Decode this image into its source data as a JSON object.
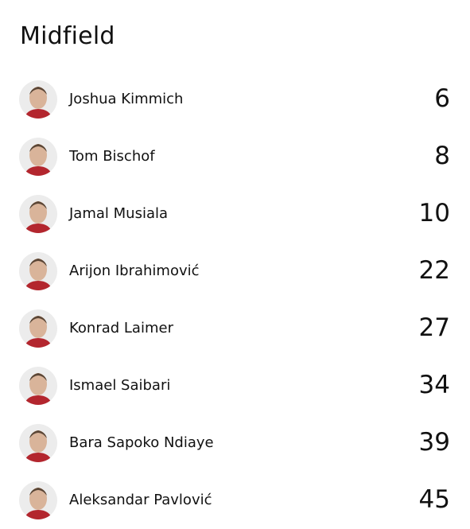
{
  "section": {
    "title": "Midfield",
    "players": [
      {
        "name": "Joshua Kimmich",
        "number": 6
      },
      {
        "name": "Tom Bischof",
        "number": 8
      },
      {
        "name": "Jamal Musiala",
        "number": 10
      },
      {
        "name": "Arijon Ibrahimović",
        "number": 22
      },
      {
        "name": "Konrad Laimer",
        "number": 27
      },
      {
        "name": "Ismael Saibari",
        "number": 34
      },
      {
        "name": "Bara Sapoko Ndiaye",
        "number": 39
      },
      {
        "name": "Aleksandar Pavlović",
        "number": 45
      }
    ]
  }
}
